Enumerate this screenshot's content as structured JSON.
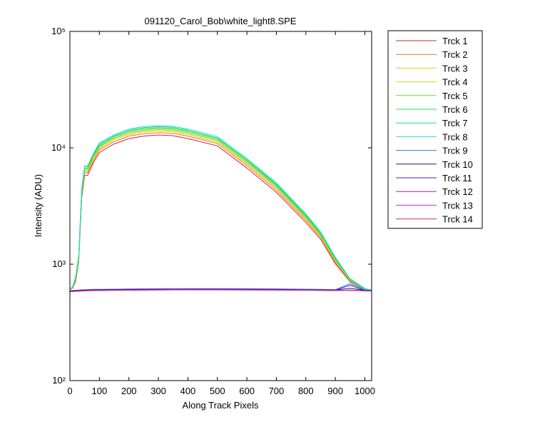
{
  "chart_data": {
    "type": "line",
    "title": "091120_Carol_Bob\\white_light8.SPE",
    "x_label": "Along Track Pixels",
    "y_label": "Intensity (ADU)",
    "y_scale": "log",
    "legend": "outside-right",
    "xlim": [
      0,
      1023
    ],
    "xticks": [
      0,
      100,
      200,
      300,
      400,
      500,
      600,
      700,
      800,
      900,
      1000
    ],
    "ylim": [
      100,
      100000
    ],
    "yticks": [
      {
        "value": 100,
        "label": "10²"
      },
      {
        "value": 1000,
        "label": "10³"
      },
      {
        "value": 10000,
        "label": "10⁴"
      },
      {
        "value": 100000,
        "label": "10⁵"
      }
    ],
    "x": [
      0,
      10,
      20,
      30,
      40,
      50,
      60,
      80,
      100,
      150,
      200,
      250,
      300,
      350,
      400,
      500,
      600,
      700,
      800,
      850,
      900,
      950,
      1000,
      1023
    ],
    "series": [
      {
        "name": "Trck 1",
        "color": "#d8202a",
        "values": [
          600,
          625,
          720,
          1050,
          3700,
          5800,
          5800,
          7500,
          9100,
          10800,
          12000,
          12600,
          12900,
          12700,
          12000,
          10400,
          6700,
          4150,
          2280,
          1640,
          1010,
          705,
          605,
          600
        ]
      },
      {
        "name": "Trck 2",
        "color": "#f07020",
        "values": [
          600,
          630,
          740,
          1080,
          3900,
          6100,
          6100,
          7800,
          9600,
          11300,
          12600,
          13200,
          13500,
          13300,
          12600,
          10900,
          7050,
          4350,
          2380,
          1700,
          1040,
          715,
          605,
          600
        ]
      },
      {
        "name": "Trck 3",
        "color": "#e8c820",
        "values": [
          600,
          635,
          750,
          1100,
          4000,
          6300,
          6300,
          8100,
          9900,
          11700,
          13000,
          13700,
          14000,
          13800,
          13000,
          11200,
          7300,
          4500,
          2450,
          1740,
          1060,
          720,
          610,
          600
        ]
      },
      {
        "name": "Trck 4",
        "color": "#b8e020",
        "values": [
          600,
          640,
          760,
          1120,
          4100,
          6400,
          6400,
          8300,
          10100,
          12000,
          13300,
          14000,
          14300,
          14100,
          13300,
          11500,
          7450,
          4600,
          2500,
          1770,
          1080,
          725,
          610,
          600
        ]
      },
      {
        "name": "Trck 5",
        "color": "#60e030",
        "values": [
          600,
          640,
          770,
          1140,
          4200,
          6600,
          6600,
          8500,
          10300,
          12200,
          13600,
          14300,
          14600,
          14400,
          13600,
          11700,
          7600,
          4700,
          2550,
          1800,
          1100,
          730,
          610,
          600
        ]
      },
      {
        "name": "Trck 6",
        "color": "#20e050",
        "values": [
          600,
          645,
          780,
          1160,
          4300,
          6700,
          6700,
          8600,
          10500,
          12500,
          13900,
          14600,
          14900,
          14700,
          13900,
          12000,
          7800,
          4800,
          2600,
          1830,
          1110,
          735,
          615,
          600
        ]
      },
      {
        "name": "Trck 7",
        "color": "#20d890",
        "values": [
          600,
          650,
          790,
          1180,
          4400,
          6900,
          6900,
          8800,
          10800,
          12700,
          14200,
          14900,
          15200,
          15000,
          14200,
          12200,
          7900,
          4900,
          2650,
          1870,
          1130,
          740,
          615,
          600
        ]
      },
      {
        "name": "Trck 8",
        "color": "#20e0e0",
        "values": [
          600,
          650,
          800,
          1200,
          4500,
          7000,
          7000,
          9000,
          11000,
          13000,
          14500,
          15200,
          15500,
          15300,
          14500,
          12500,
          8100,
          5000,
          2700,
          1900,
          1150,
          750,
          620,
          600
        ]
      },
      {
        "name": "Trck 9",
        "color": "#2080e0",
        "values": [
          590,
          595,
          598,
          600,
          602,
          604,
          605,
          607,
          608,
          610,
          612,
          614,
          615,
          615,
          616,
          616,
          615,
          613,
          610,
          608,
          605,
          680,
          600,
          595
        ]
      },
      {
        "name": "Trck 10",
        "color": "#102070",
        "values": [
          585,
          590,
          593,
          595,
          597,
          599,
          600,
          602,
          603,
          605,
          607,
          608,
          609,
          610,
          610,
          610,
          609,
          607,
          604,
          602,
          600,
          620,
          595,
          592
        ]
      },
      {
        "name": "Trck 11",
        "color": "#3020e0",
        "values": [
          585,
          588,
          590,
          592,
          594,
          596,
          597,
          599,
          600,
          602,
          604,
          605,
          606,
          607,
          607,
          607,
          606,
          604,
          601,
          599,
          597,
          660,
          593,
          590
        ]
      },
      {
        "name": "Trck 12",
        "color": "#a020e0",
        "values": [
          580,
          583,
          585,
          587,
          589,
          591,
          592,
          594,
          595,
          597,
          599,
          600,
          601,
          602,
          602,
          602,
          601,
          600,
          598,
          596,
          594,
          600,
          590,
          588
        ]
      },
      {
        "name": "Trck 13",
        "color": "#e020e0",
        "values": [
          582,
          584,
          586,
          588,
          590,
          592,
          593,
          595,
          596,
          598,
          600,
          601,
          602,
          603,
          603,
          603,
          602,
          601,
          599,
          597,
          595,
          598,
          591,
          589
        ]
      },
      {
        "name": "Trck 14",
        "color": "#e02070",
        "values": [
          581,
          583,
          585,
          587,
          589,
          590,
          591,
          593,
          594,
          596,
          598,
          599,
          600,
          601,
          601,
          601,
          600,
          599,
          597,
          595,
          593,
          596,
          590,
          588
        ]
      }
    ]
  }
}
